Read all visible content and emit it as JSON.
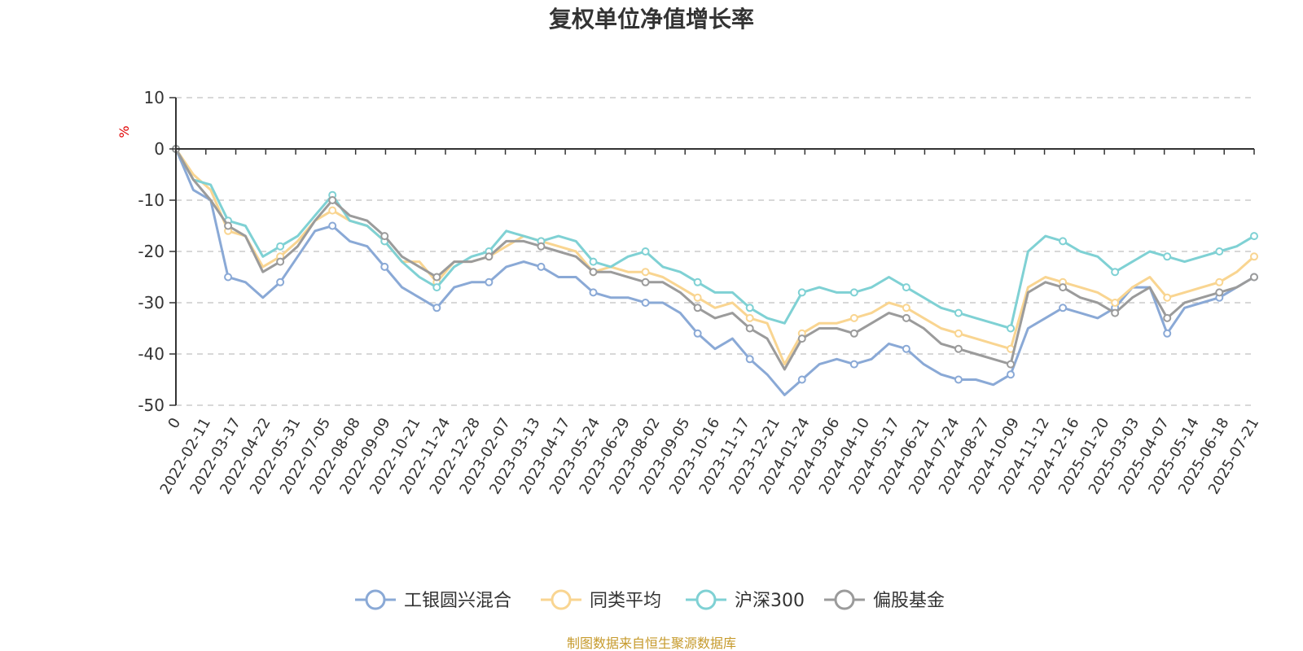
{
  "chart_data": {
    "type": "line",
    "title": "复权单位净值增长率",
    "ylabel": "%",
    "ylim": [
      -50,
      10
    ],
    "yticks": [
      "10",
      "0",
      "-10",
      "-20",
      "-30",
      "-40",
      "-50"
    ],
    "x_tick_labels": [
      "0",
      "2022-02-11",
      "2022-03-17",
      "2022-04-22",
      "2022-05-31",
      "2022-07-05",
      "2022-08-08",
      "2022-09-09",
      "2022-10-21",
      "2022-11-24",
      "2022-12-28",
      "2023-02-07",
      "2023-03-13",
      "2023-04-17",
      "2023-05-24",
      "2023-06-29",
      "2023-08-02",
      "2023-09-05",
      "2023-10-16",
      "2023-11-17",
      "2023-12-21",
      "2024-01-24",
      "2024-03-06",
      "2024-04-10",
      "2024-05-17",
      "2024-06-21",
      "2024-07-24",
      "2024-08-27",
      "2024-10-09",
      "2024-11-12",
      "2024-12-16",
      "2025-01-20",
      "2025-03-03",
      "2025-04-07",
      "2025-05-14",
      "2025-06-18",
      "2025-07-21"
    ],
    "grid": true,
    "legend_position": "bottom",
    "series": [
      {
        "name": "工银圆兴混合",
        "color": "#8aa9d6",
        "values": [
          0,
          -8,
          -10,
          -25,
          -26,
          -29,
          -26,
          -21,
          -16,
          -15,
          -18,
          -19,
          -23,
          -27,
          -29,
          -31,
          -27,
          -26,
          -26,
          -23,
          -22,
          -23,
          -25,
          -25,
          -28,
          -29,
          -29,
          -30,
          -30,
          -32,
          -36,
          -39,
          -37,
          -41,
          -44,
          -48,
          -45,
          -42,
          -41,
          -42,
          -41,
          -38,
          -39,
          -42,
          -44,
          -45,
          -45,
          -46,
          -44,
          -35,
          -33,
          -31,
          -32,
          -33,
          -31,
          -27,
          -27,
          -36,
          -31,
          -30,
          -29,
          -27,
          -25
        ]
      },
      {
        "name": "同类平均",
        "color": "#f9d591",
        "values": [
          0,
          -5,
          -8,
          -16,
          -17,
          -23,
          -21,
          -18,
          -14,
          -12,
          -14,
          -15,
          -18,
          -22,
          -22,
          -26,
          -22,
          -22,
          -21,
          -19,
          -17,
          -18,
          -19,
          -20,
          -24,
          -23,
          -24,
          -24,
          -25,
          -27,
          -29,
          -31,
          -30,
          -33,
          -34,
          -42,
          -36,
          -34,
          -34,
          -33,
          -32,
          -30,
          -31,
          -33,
          -35,
          -36,
          -37,
          -38,
          -39,
          -27,
          -25,
          -26,
          -27,
          -28,
          -30,
          -27,
          -25,
          -29,
          -28,
          -27,
          -26,
          -24,
          -21
        ]
      },
      {
        "name": "沪深300",
        "color": "#7fd1d4",
        "values": [
          0,
          -6,
          -7,
          -14,
          -15,
          -21,
          -19,
          -17,
          -13,
          -9,
          -14,
          -15,
          -18,
          -22,
          -25,
          -27,
          -23,
          -21,
          -20,
          -16,
          -17,
          -18,
          -17,
          -18,
          -22,
          -23,
          -21,
          -20,
          -23,
          -24,
          -26,
          -28,
          -28,
          -31,
          -33,
          -34,
          -28,
          -27,
          -28,
          -28,
          -27,
          -25,
          -27,
          -29,
          -31,
          -32,
          -33,
          -34,
          -35,
          -20,
          -17,
          -18,
          -20,
          -21,
          -24,
          -22,
          -20,
          -21,
          -22,
          -21,
          -20,
          -19,
          -17
        ]
      },
      {
        "name": "偏股基金",
        "color": "#9b9b9b",
        "values": [
          0,
          -6,
          -10,
          -15,
          -17,
          -24,
          -22,
          -19,
          -14,
          -10,
          -13,
          -14,
          -17,
          -21,
          -23,
          -25,
          -22,
          -22,
          -21,
          -18,
          -18,
          -19,
          -20,
          -21,
          -24,
          -24,
          -25,
          -26,
          -26,
          -28,
          -31,
          -33,
          -32,
          -35,
          -37,
          -43,
          -37,
          -35,
          -35,
          -36,
          -34,
          -32,
          -33,
          -35,
          -38,
          -39,
          -40,
          -41,
          -42,
          -28,
          -26,
          -27,
          -29,
          -30,
          -32,
          -29,
          -27,
          -33,
          -30,
          -29,
          -28,
          -27,
          -25
        ]
      }
    ]
  },
  "source_note": "制图数据来自恒生聚源数据库"
}
